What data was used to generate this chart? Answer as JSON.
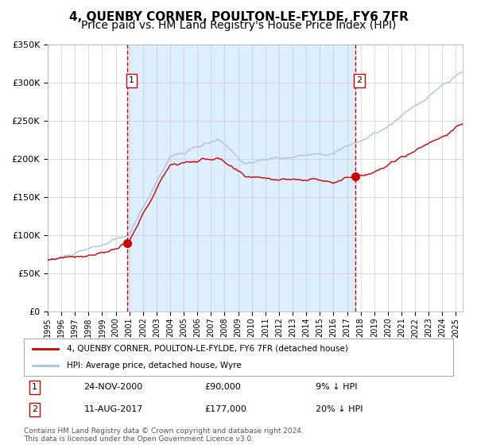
{
  "title": "4, QUENBY CORNER, POULTON-LE-FYLDE, FY6 7FR",
  "subtitle": "Price paid vs. HM Land Registry's House Price Index (HPI)",
  "legend_line1": "4, QUENBY CORNER, POULTON-LE-FYLDE, FY6 7FR (detached house)",
  "legend_line2": "HPI: Average price, detached house, Wyre",
  "footer": "Contains HM Land Registry data © Crown copyright and database right 2024.\nThis data is licensed under the Open Government Licence v3.0.",
  "annotation1_date": "24-NOV-2000",
  "annotation1_price": "£90,000",
  "annotation1_hpi": "9% ↓ HPI",
  "annotation2_date": "11-AUG-2017",
  "annotation2_price": "£177,000",
  "annotation2_hpi": "20% ↓ HPI",
  "ylim": [
    0,
    350000
  ],
  "hpi_color": "#a8c4e0",
  "price_color": "#cc0000",
  "vline_color": "#cc0000",
  "bg_shaded_color": "#ddeeff",
  "grid_color": "#cccccc",
  "title_fontsize": 11,
  "subtitle_fontsize": 10
}
